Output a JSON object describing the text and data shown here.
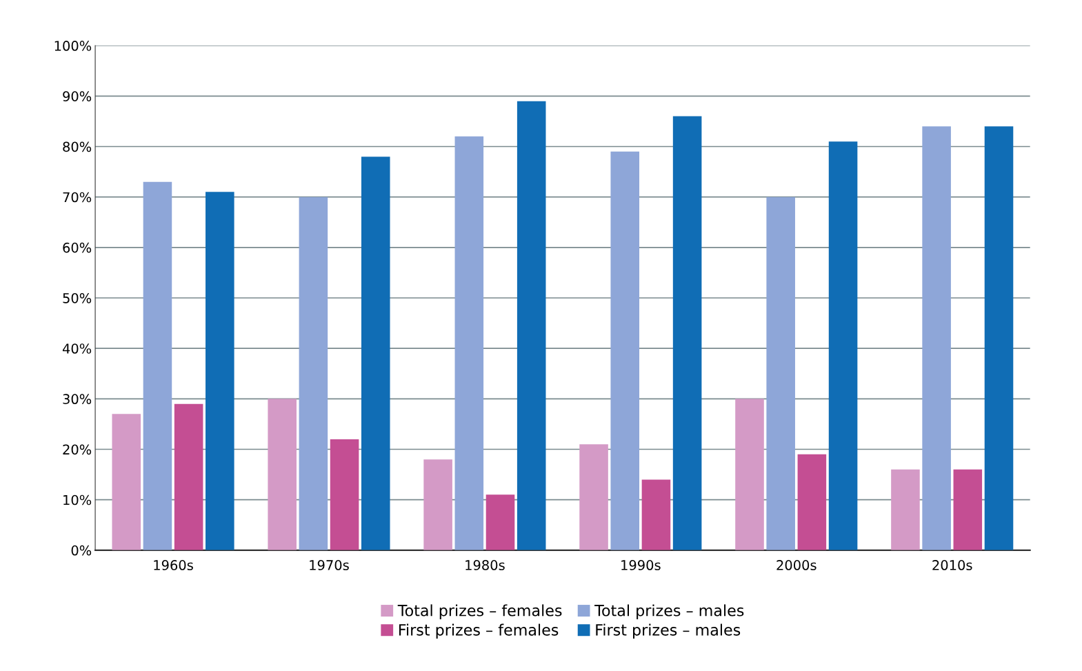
{
  "chart_data": {
    "type": "bar",
    "categories": [
      "1960s",
      "1970s",
      "1980s",
      "1990s",
      "2000s",
      "2010s"
    ],
    "series": [
      {
        "name": "Total prizes – females",
        "color": "#d49ac6",
        "values": [
          27,
          30,
          18,
          21,
          30,
          16
        ]
      },
      {
        "name": "Total prizes – males",
        "color": "#8ea6d8",
        "values": [
          73,
          70,
          82,
          79,
          70,
          84
        ]
      },
      {
        "name": "First prizes – females",
        "color": "#c44e93",
        "values": [
          29,
          22,
          11,
          14,
          19,
          16
        ]
      },
      {
        "name": "First prizes – males",
        "color": "#106db5",
        "values": [
          71,
          78,
          89,
          86,
          81,
          84
        ]
      }
    ],
    "ylim": [
      0,
      100
    ],
    "yticks": [
      {
        "value": 0,
        "label": "0%"
      },
      {
        "value": 10,
        "label": "10%"
      },
      {
        "value": 20,
        "label": "20%"
      },
      {
        "value": 30,
        "label": "30%"
      },
      {
        "value": 40,
        "label": "40%"
      },
      {
        "value": 50,
        "label": "50%"
      },
      {
        "value": 60,
        "label": "60%"
      },
      {
        "value": 70,
        "label": "70%"
      },
      {
        "value": 80,
        "label": "80%"
      },
      {
        "value": 90,
        "label": "90%"
      },
      {
        "value": 100,
        "label": "100%"
      }
    ],
    "grid": "y",
    "legend": "bottom"
  }
}
